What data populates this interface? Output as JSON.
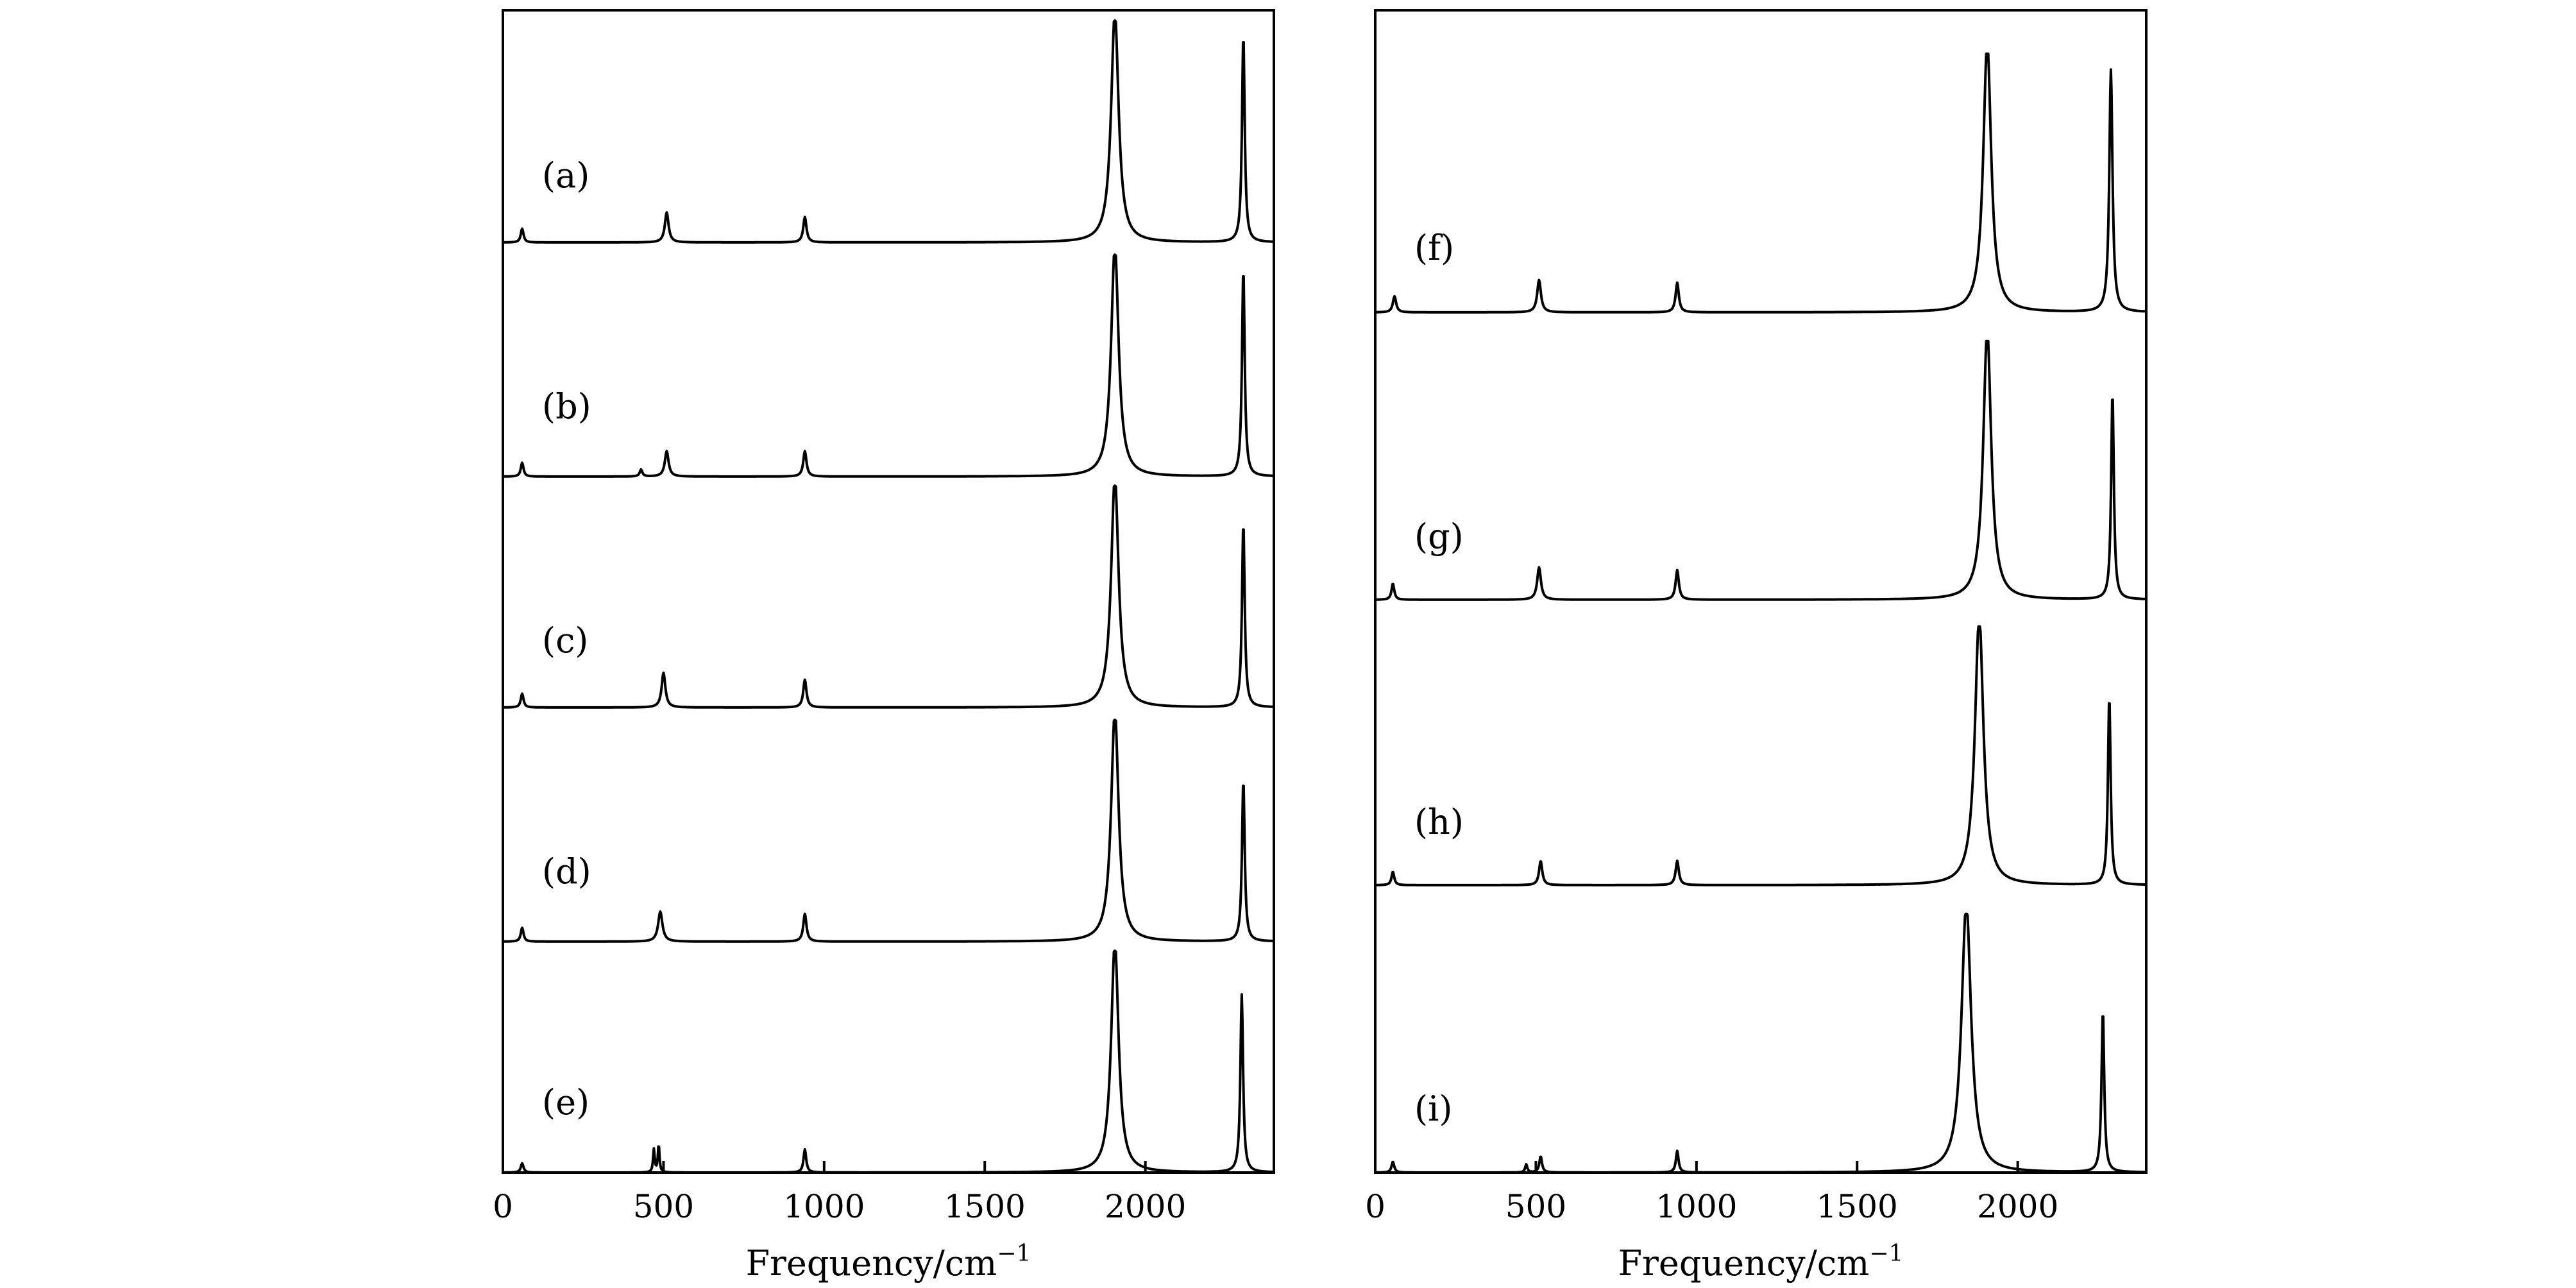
{
  "chart_data": [
    {
      "type": "line",
      "panel": "left",
      "xlabel": "Frequency/cm",
      "xlabel_superscript": "−1",
      "xlim": [
        0,
        2400
      ],
      "xticks": [
        0,
        500,
        1000,
        1500,
        2000
      ],
      "xtick_labels": [
        "0",
        "500",
        "1000",
        "1500",
        "2000"
      ],
      "yaxis": "stacked-offset, unlabeled",
      "traces": [
        {
          "label": "(a)",
          "peaks": [
            {
              "x": 60,
              "h": 0.06,
              "w": 5
            },
            {
              "x": 510,
              "h": 0.13,
              "w": 7
            },
            {
              "x": 940,
              "h": 0.11,
              "w": 6
            },
            {
              "x": 1905,
              "h": 1.0,
              "w": 14,
              "flat": true
            },
            {
              "x": 2305,
              "h": 0.9,
              "w": 5
            }
          ]
        },
        {
          "label": "(b)",
          "peaks": [
            {
              "x": 60,
              "h": 0.06,
              "w": 5
            },
            {
              "x": 430,
              "h": 0.03,
              "w": 5
            },
            {
              "x": 510,
              "h": 0.11,
              "w": 7
            },
            {
              "x": 940,
              "h": 0.11,
              "w": 6
            },
            {
              "x": 1905,
              "h": 1.0,
              "w": 14,
              "flat": true
            },
            {
              "x": 2305,
              "h": 0.9,
              "w": 5
            }
          ]
        },
        {
          "label": "(c)",
          "peaks": [
            {
              "x": 60,
              "h": 0.06,
              "w": 5
            },
            {
              "x": 500,
              "h": 0.15,
              "w": 7
            },
            {
              "x": 940,
              "h": 0.12,
              "w": 6
            },
            {
              "x": 1905,
              "h": 1.0,
              "w": 14,
              "flat": true
            },
            {
              "x": 2305,
              "h": 0.8,
              "w": 5
            }
          ]
        },
        {
          "label": "(d)",
          "peaks": [
            {
              "x": 60,
              "h": 0.06,
              "w": 5
            },
            {
              "x": 490,
              "h": 0.13,
              "w": 8
            },
            {
              "x": 940,
              "h": 0.12,
              "w": 6
            },
            {
              "x": 1905,
              "h": 1.0,
              "w": 14,
              "flat": true
            },
            {
              "x": 2305,
              "h": 0.7,
              "w": 5
            }
          ]
        },
        {
          "label": "(e)",
          "peaks": [
            {
              "x": 60,
              "h": 0.04,
              "w": 5
            },
            {
              "x": 470,
              "h": 0.1,
              "w": 3
            },
            {
              "x": 485,
              "h": 0.12,
              "w": 3
            },
            {
              "x": 940,
              "h": 0.1,
              "w": 5
            },
            {
              "x": 1905,
              "h": 1.0,
              "w": 14,
              "flat": true
            },
            {
              "x": 2300,
              "h": 0.77,
              "w": 5
            }
          ]
        }
      ]
    },
    {
      "type": "line",
      "panel": "right",
      "xlabel": "Frequency/cm",
      "xlabel_superscript": "−1",
      "xlim": [
        0,
        2400
      ],
      "xticks": [
        0,
        500,
        1000,
        1500,
        2000
      ],
      "xtick_labels": [
        "0",
        "500",
        "1000",
        "1500",
        "2000"
      ],
      "yaxis": "stacked-offset, unlabeled",
      "traces": [
        {
          "label": "(f)",
          "peaks": [
            {
              "x": 60,
              "h": 0.06,
              "w": 6
            },
            {
              "x": 510,
              "h": 0.12,
              "w": 7
            },
            {
              "x": 940,
              "h": 0.11,
              "w": 6
            },
            {
              "x": 1905,
              "h": 1.0,
              "w": 15,
              "flat": true
            },
            {
              "x": 2290,
              "h": 0.9,
              "w": 6
            }
          ]
        },
        {
          "label": "(g)",
          "peaks": [
            {
              "x": 55,
              "h": 0.06,
              "w": 5
            },
            {
              "x": 510,
              "h": 0.12,
              "w": 7
            },
            {
              "x": 940,
              "h": 0.11,
              "w": 6
            },
            {
              "x": 1905,
              "h": 1.0,
              "w": 15,
              "flat": true
            },
            {
              "x": 2295,
              "h": 0.77,
              "w": 5
            }
          ]
        },
        {
          "label": "(h)",
          "peaks": [
            {
              "x": 55,
              "h": 0.05,
              "w": 5
            },
            {
              "x": 515,
              "h": 0.09,
              "w": 6
            },
            {
              "x": 940,
              "h": 0.09,
              "w": 6
            },
            {
              "x": 1880,
              "h": 1.0,
              "w": 16,
              "flat": true
            },
            {
              "x": 2285,
              "h": 0.7,
              "w": 5
            }
          ]
        },
        {
          "label": "(i)",
          "peaks": [
            {
              "x": 55,
              "h": 0.04,
              "w": 5
            },
            {
              "x": 470,
              "h": 0.03,
              "w": 4
            },
            {
              "x": 515,
              "h": 0.06,
              "w": 5
            },
            {
              "x": 940,
              "h": 0.08,
              "w": 5
            },
            {
              "x": 1840,
              "h": 1.0,
              "w": 18,
              "flat": true
            },
            {
              "x": 2265,
              "h": 0.6,
              "w": 5
            }
          ]
        }
      ]
    }
  ]
}
